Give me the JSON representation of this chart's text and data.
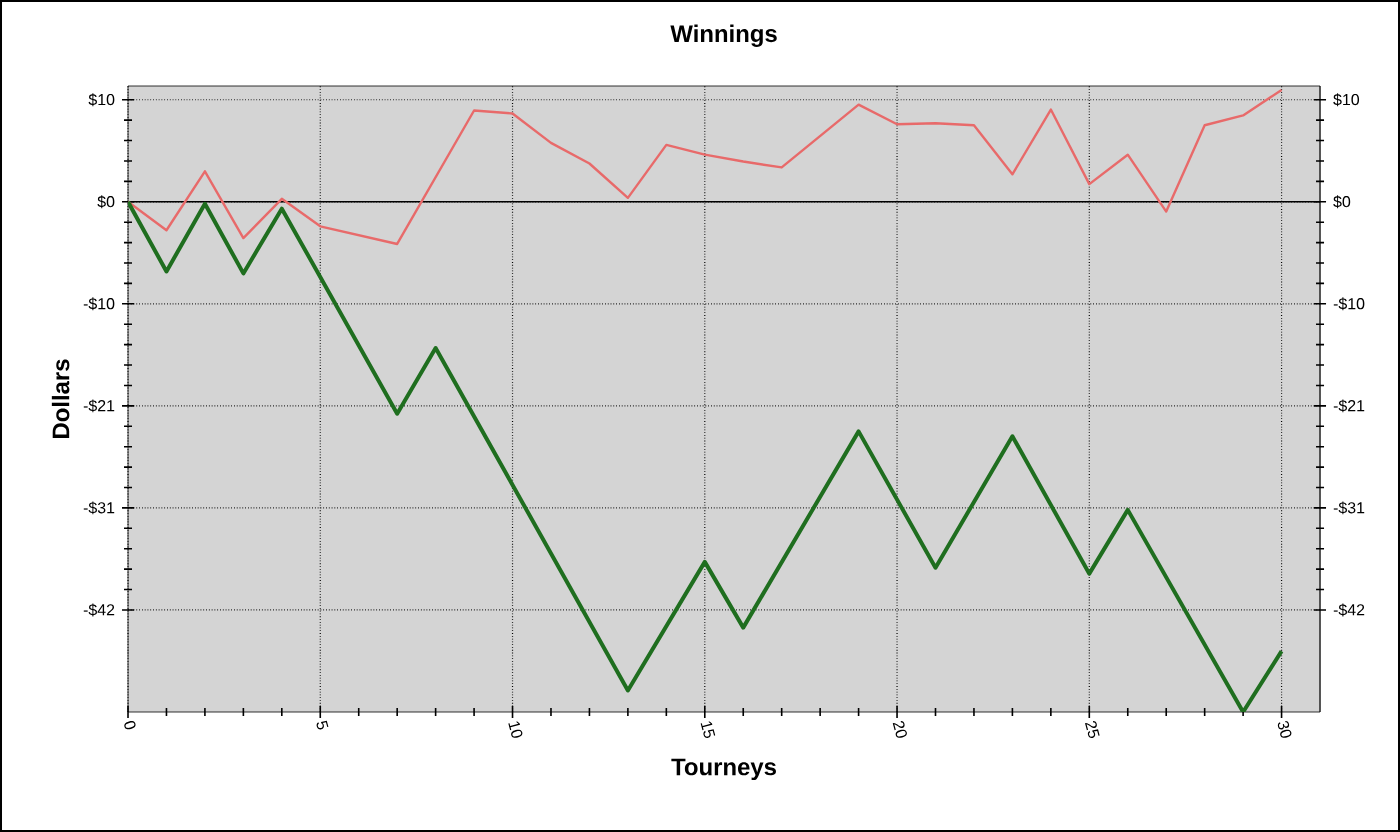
{
  "chart_data": {
    "type": "line",
    "title": "Winnings",
    "xlabel": "Tourneys",
    "ylabel": "Dollars",
    "xlim": [
      0,
      31
    ],
    "xticks": [
      0,
      5,
      10,
      15,
      20,
      25,
      30
    ],
    "ylim": [
      -52,
      11.8
    ],
    "yticks": [
      {
        "value": 10.4,
        "label": "$10"
      },
      {
        "value": 0,
        "label": "$0"
      },
      {
        "value": -10.4,
        "label": "-$10"
      },
      {
        "value": -20.8,
        "label": "-$21"
      },
      {
        "value": -31.2,
        "label": "-$31"
      },
      {
        "value": -41.6,
        "label": "-$42"
      }
    ],
    "y2lim": [
      -52,
      11.8
    ],
    "y2ticks": [
      {
        "value": 10.4,
        "label": "$10"
      },
      {
        "value": 0,
        "label": "$0"
      },
      {
        "value": -10.4,
        "label": "-$10"
      },
      {
        "value": -20.8,
        "label": "-$21"
      },
      {
        "value": -31.2,
        "label": "-$31"
      },
      {
        "value": -41.6,
        "label": "-$42"
      }
    ],
    "grid": true,
    "marker": "none",
    "line_style": "solid",
    "ref_lines": [
      {
        "axis": "y",
        "value": 0,
        "color": "#000000"
      }
    ],
    "series": [
      {
        "color": "#e86a6a",
        "x": [
          0,
          1,
          2,
          3,
          4,
          5,
          7,
          9,
          10,
          11,
          12,
          13,
          14,
          15,
          16,
          17,
          18,
          19,
          20,
          21,
          22,
          23,
          24,
          25,
          26,
          27,
          28,
          29,
          30
        ],
        "values": [
          0,
          -2.9,
          3.1,
          -3.7,
          0.3,
          -2.5,
          -4.3,
          9.3,
          9.0,
          6.0,
          3.9,
          0.4,
          5.8,
          4.8,
          4.1,
          3.5,
          6.7,
          9.9,
          7.9,
          8.0,
          7.8,
          2.8,
          9.4,
          1.8,
          4.8,
          -1.0,
          7.8,
          8.8,
          11.4
        ]
      },
      {
        "color": "#1f6e1f",
        "x": [
          0,
          1,
          2,
          3,
          4,
          7,
          8,
          13,
          15,
          16,
          19,
          21,
          23,
          25,
          26,
          29,
          30
        ],
        "values": [
          0,
          -7.1,
          -0.2,
          -7.3,
          -0.7,
          -21.6,
          -14.9,
          -49.8,
          -36.7,
          -43.4,
          -23.4,
          -37.3,
          -23.9,
          -37.9,
          -31.4,
          -52,
          -45.8
        ]
      }
    ]
  }
}
